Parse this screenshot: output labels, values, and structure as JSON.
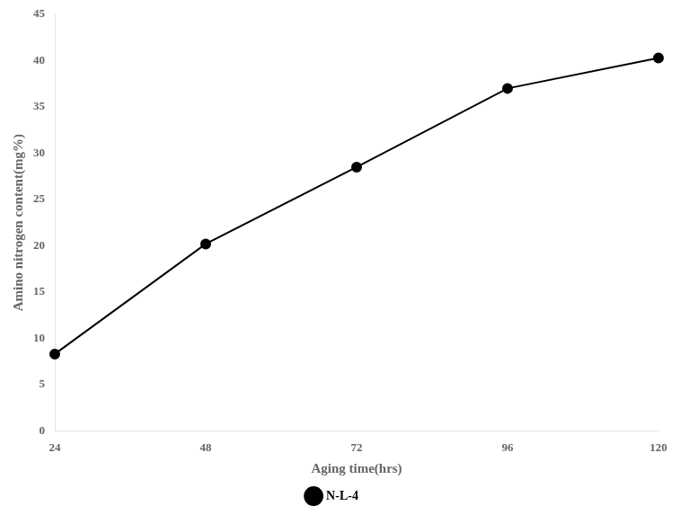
{
  "chart_data": {
    "type": "line",
    "x": [
      24,
      48,
      72,
      96,
      120
    ],
    "series": [
      {
        "name": "N-L-4",
        "color": "#000000",
        "marker": "circle",
        "values": [
          8.3,
          20.2,
          28.5,
          37.0,
          40.3
        ]
      }
    ],
    "xlabel": "Aging time(hrs)",
    "ylabel": "Amino nitrogen content(mg%)",
    "xlim": [
      24,
      120
    ],
    "ylim": [
      0,
      45
    ],
    "xticks": [
      24,
      48,
      72,
      96,
      120
    ],
    "yticks": [
      0,
      5,
      10,
      15,
      20,
      25,
      30,
      35,
      40,
      45
    ],
    "grid": false,
    "legend": "bottom"
  }
}
